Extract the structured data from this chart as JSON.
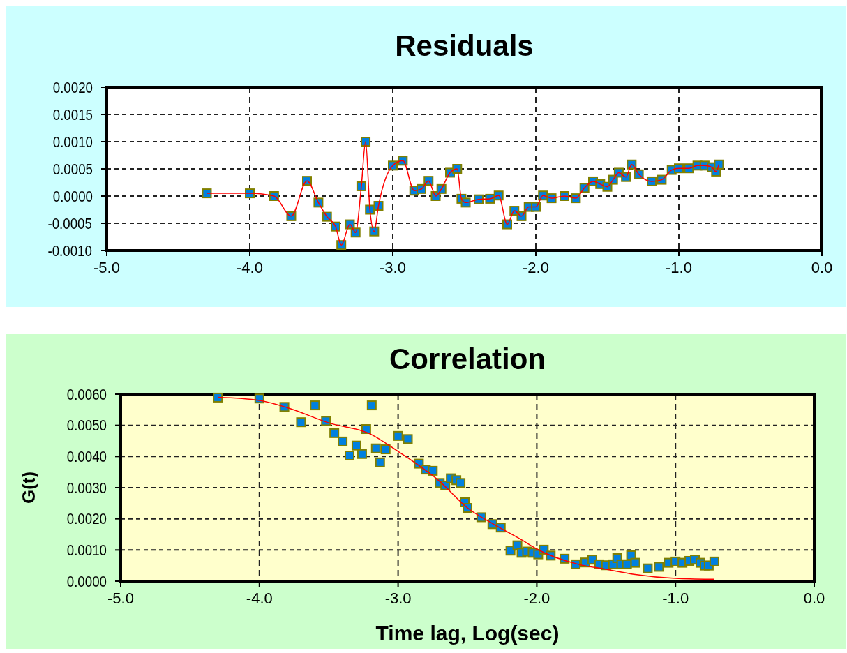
{
  "chart_data": [
    {
      "type": "line",
      "title": "Residuals",
      "marker": "square",
      "grid": true,
      "xlim": [
        -5,
        0
      ],
      "xticks": [
        {
          "value": -5,
          "label": "-5.0"
        },
        {
          "value": -4,
          "label": "-4.0"
        },
        {
          "value": -3,
          "label": "-3.0"
        },
        {
          "value": -2,
          "label": "-2.0"
        },
        {
          "value": -1,
          "label": "-1.0"
        },
        {
          "value": 0,
          "label": "0.0"
        }
      ],
      "ylim": [
        -0.001,
        0.002
      ],
      "yticks": [
        {
          "value": -0.001,
          "label": "-0.0010"
        },
        {
          "value": -0.0005,
          "label": "-0.0005"
        },
        {
          "value": 0,
          "label": "0.0000"
        },
        {
          "value": 0.0005,
          "label": "0.0005"
        },
        {
          "value": 0.001,
          "label": "0.0010"
        },
        {
          "value": 0.0015,
          "label": "0.0015"
        },
        {
          "value": 0.002,
          "label": "0.0020"
        }
      ],
      "series": [
        {
          "color": "#ff0000",
          "x": [
            -4.3,
            -4.0,
            -3.83,
            -3.71,
            -3.6,
            -3.52,
            -3.46,
            -3.4,
            -3.36,
            -3.3,
            -3.26,
            -3.22,
            -3.19,
            -3.16,
            -3.13,
            -3.1,
            -3.0,
            -2.93,
            -2.85,
            -2.8,
            -2.75,
            -2.7,
            -2.66,
            -2.6,
            -2.55,
            -2.52,
            -2.49,
            -2.4,
            -2.32,
            -2.26,
            -2.2,
            -2.15,
            -2.1,
            -2.05,
            -2.0,
            -1.95,
            -1.89,
            -1.8,
            -1.72,
            -1.66,
            -1.6,
            -1.55,
            -1.5,
            -1.46,
            -1.42,
            -1.37,
            -1.33,
            -1.28,
            -1.19,
            -1.12,
            -1.05,
            -1.0,
            -0.93,
            -0.87,
            -0.82,
            -0.77,
            -0.74,
            -0.72
          ],
          "values": [
            5e-05,
            5e-05,
            0.0,
            -0.00037,
            0.00028,
            -0.00012,
            -0.00038,
            -0.00056,
            -0.0009,
            -0.00052,
            -0.00067,
            0.00018,
            0.001,
            -0.00025,
            -0.00065,
            -0.00018,
            0.00056,
            0.00065,
            0.0001,
            0.00013,
            0.00028,
            0.0,
            0.00013,
            0.00043,
            0.0005,
            -5e-05,
            -0.00012,
            -6e-05,
            -5e-05,
            1e-05,
            -0.00052,
            -0.00027,
            -0.00037,
            -0.0002,
            -0.0002,
            1e-05,
            -4e-05,
            0.0,
            -4e-05,
            0.00015,
            0.00027,
            0.00022,
            0.00017,
            0.0003,
            0.00043,
            0.00035,
            0.00058,
            0.0004,
            0.00027,
            0.0003,
            0.00048,
            0.00051,
            0.00051,
            0.00056,
            0.00056,
            0.00053,
            0.00045,
            0.00058
          ]
        }
      ]
    },
    {
      "type": "scatter",
      "title": "Correlation",
      "xlabel": "Time lag, Log(sec)",
      "ylabel": "G(t)",
      "marker": "square",
      "grid": true,
      "xlim": [
        -5,
        0
      ],
      "xticks": [
        {
          "value": -5,
          "label": "-5.0"
        },
        {
          "value": -4,
          "label": "-4.0"
        },
        {
          "value": -3,
          "label": "-3.0"
        },
        {
          "value": -2,
          "label": "-2.0"
        },
        {
          "value": -1,
          "label": "-1.0"
        },
        {
          "value": 0,
          "label": "0.0"
        }
      ],
      "ylim": [
        0,
        0.006
      ],
      "yticks": [
        {
          "value": 0,
          "label": "0.0000"
        },
        {
          "value": 0.001,
          "label": "0.0010"
        },
        {
          "value": 0.002,
          "label": "0.0020"
        },
        {
          "value": 0.003,
          "label": "0.0030"
        },
        {
          "value": 0.004,
          "label": "0.0040"
        },
        {
          "value": 0.005,
          "label": "0.0050"
        },
        {
          "value": 0.006,
          "label": "0.0060"
        }
      ],
      "series": [
        {
          "color": "#0080e0",
          "x": [
            -4.3,
            -4.0,
            -3.82,
            -3.7,
            -3.6,
            -3.52,
            -3.46,
            -3.4,
            -3.35,
            -3.3,
            -3.26,
            -3.23,
            -3.19,
            -3.16,
            -3.13,
            -3.09,
            -3.0,
            -2.93,
            -2.85,
            -2.8,
            -2.75,
            -2.7,
            -2.66,
            -2.62,
            -2.58,
            -2.55,
            -2.52,
            -2.5,
            -2.4,
            -2.32,
            -2.26,
            -2.19,
            -2.14,
            -2.11,
            -2.07,
            -2.03,
            -1.99,
            -1.95,
            -1.9,
            -1.8,
            -1.72,
            -1.65,
            -1.6,
            -1.55,
            -1.5,
            -1.45,
            -1.42,
            -1.39,
            -1.35,
            -1.32,
            -1.29,
            -1.2,
            -1.12,
            -1.05,
            -1.0,
            -0.95,
            -0.9,
            -0.86,
            -0.82,
            -0.79,
            -0.76,
            -0.72
          ],
          "values": [
            0.00589,
            0.00586,
            0.00559,
            0.0051,
            0.00564,
            0.00514,
            0.00475,
            0.00448,
            0.00403,
            0.00435,
            0.00408,
            0.00488,
            0.00564,
            0.00426,
            0.00381,
            0.00423,
            0.00466,
            0.00456,
            0.00377,
            0.00358,
            0.00354,
            0.00315,
            0.00307,
            0.0033,
            0.00324,
            0.00315,
            0.00253,
            0.00235,
            0.00205,
            0.00183,
            0.00172,
            0.00098,
            0.00115,
            0.00091,
            0.00095,
            0.00091,
            0.00086,
            0.00101,
            0.00082,
            0.00072,
            0.00054,
            0.0006,
            0.00069,
            0.00054,
            0.00051,
            0.00054,
            0.00074,
            0.00054,
            0.00054,
            0.00083,
            0.00059,
            0.00041,
            0.00046,
            0.00059,
            0.00063,
            0.00059,
            0.00065,
            0.00069,
            0.00059,
            0.0005,
            0.0005,
            0.00063
          ]
        },
        {
          "type": "line",
          "color": "#ff0000",
          "marker": "none",
          "x": [
            -4.3,
            -4.0,
            -3.8,
            -3.5,
            -3.2,
            -3.0,
            -2.7,
            -2.5,
            -2.3,
            -2.1,
            -2.0,
            -1.7,
            -1.5,
            -1.3,
            -1.0,
            -0.72
          ],
          "values": [
            0.0059,
            0.0058,
            0.00557,
            0.00508,
            0.00472,
            0.00416,
            0.0032,
            0.00235,
            0.0018,
            0.0013,
            0.00103,
            0.00054,
            0.00038,
            0.00022,
            9e-05,
            6e-05
          ]
        }
      ]
    }
  ]
}
